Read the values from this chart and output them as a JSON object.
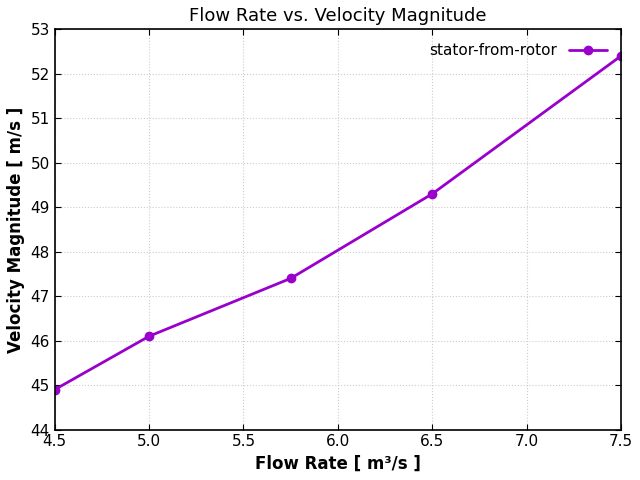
{
  "x": [
    4.5,
    5.0,
    5.75,
    6.5,
    7.5
  ],
  "y": [
    44.9,
    46.1,
    47.4,
    49.3,
    52.4
  ],
  "color": "#9900cc",
  "linewidth": 2.0,
  "markersize": 6,
  "marker": "o",
  "title": "Flow Rate vs. Velocity Magnitude",
  "xlabel": "Flow Rate [ m³/s ]",
  "ylabel": "Velocity Magnitude [ m/s ]",
  "xlim": [
    4.5,
    7.5
  ],
  "ylim": [
    44,
    53
  ],
  "xticks": [
    4.5,
    5.0,
    5.5,
    6.0,
    6.5,
    7.0,
    7.5
  ],
  "yticks": [
    44,
    45,
    46,
    47,
    48,
    49,
    50,
    51,
    52,
    53
  ],
  "legend_label": "stator-from-rotor",
  "grid_color": "#cccccc",
  "background_color": "#ffffff",
  "title_fontsize": 13,
  "label_fontsize": 12,
  "tick_fontsize": 11,
  "legend_fontsize": 11
}
